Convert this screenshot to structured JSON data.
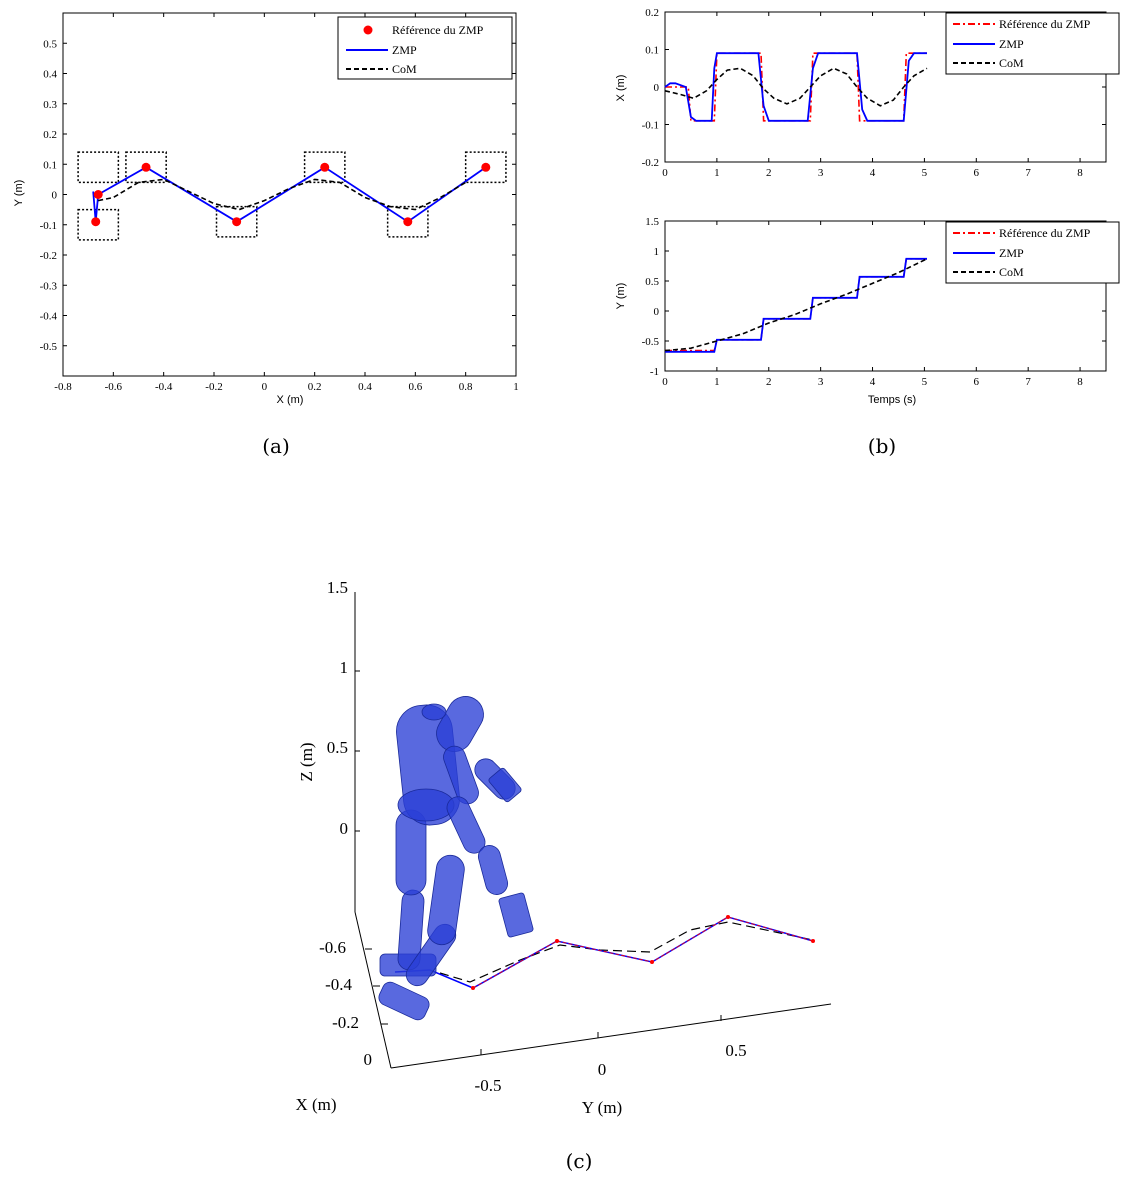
{
  "captions": {
    "a": "(a)",
    "b": "(b)",
    "c": "(c)"
  },
  "colors": {
    "reference": "#ff0000",
    "zmp": "#0000ff",
    "com": "#000000",
    "robot": "#2a3fd6"
  },
  "chart_data": [
    {
      "id": "a",
      "type": "line",
      "xlabel": "X (m)",
      "ylabel": "Y (m)",
      "xlim": [
        -0.8,
        1
      ],
      "ylim": [
        -0.6,
        0.6
      ],
      "xticks": [
        "-0.8",
        "-0.6",
        "-0.4",
        "-0.2",
        "0",
        "0.2",
        "0.4",
        "0.6",
        "0.8",
        "1"
      ],
      "yticks": [
        "0.5",
        "0.4",
        "0.3",
        "0.2",
        "0.1",
        "0",
        "-0.1",
        "-0.2",
        "-0.3",
        "-0.4",
        "-0.5"
      ],
      "legend_position": "top-right",
      "legend": [
        "Référence du ZMP",
        "ZMP",
        "CoM"
      ],
      "series": [
        {
          "name": "Référence du ZMP",
          "style": "markers",
          "x": [
            -0.66,
            -0.67,
            -0.47,
            -0.11,
            0.24,
            0.57,
            0.88
          ],
          "y": [
            0.0,
            -0.09,
            0.09,
            -0.09,
            0.09,
            -0.09,
            0.09
          ]
        },
        {
          "name": "ZMP",
          "style": "solid",
          "x": [
            -0.68,
            -0.67,
            -0.66,
            -0.47,
            -0.11,
            0.24,
            0.57,
            0.88
          ],
          "y": [
            0.01,
            -0.09,
            0.0,
            0.09,
            -0.09,
            0.09,
            -0.09,
            0.09
          ]
        },
        {
          "name": "CoM",
          "style": "dashed",
          "x": [
            -0.66,
            -0.6,
            -0.5,
            -0.4,
            -0.3,
            -0.2,
            -0.1,
            0.0,
            0.1,
            0.2,
            0.3,
            0.4,
            0.5,
            0.6,
            0.7,
            0.8
          ],
          "y": [
            -0.02,
            -0.01,
            0.04,
            0.05,
            0.01,
            -0.03,
            -0.05,
            -0.02,
            0.02,
            0.05,
            0.04,
            -0.01,
            -0.04,
            -0.05,
            -0.01,
            0.04
          ]
        }
      ],
      "footprints": [
        {
          "x": -0.66,
          "y": 0.09
        },
        {
          "x": -0.66,
          "y": -0.1
        },
        {
          "x": -0.47,
          "y": 0.09
        },
        {
          "x": -0.11,
          "y": -0.09
        },
        {
          "x": 0.24,
          "y": 0.09
        },
        {
          "x": 0.57,
          "y": -0.09
        },
        {
          "x": 0.88,
          "y": 0.09
        }
      ]
    },
    {
      "id": "b-top",
      "type": "line",
      "xlabel": "",
      "ylabel": "X (m)",
      "xlim": [
        0,
        8.5
      ],
      "ylim": [
        -0.2,
        0.2
      ],
      "xticks": [
        "0",
        "1",
        "2",
        "3",
        "4",
        "5",
        "6",
        "7",
        "8"
      ],
      "yticks": [
        "0.2",
        "0.1",
        "0",
        "-0.1",
        "-0.2"
      ],
      "legend_position": "top-right",
      "legend": [
        "Référence du ZMP",
        "ZMP",
        "CoM"
      ],
      "series": [
        {
          "name": "Référence du ZMP",
          "style": "dashdot",
          "x": [
            0,
            0.45,
            0.5,
            0.95,
            1.0,
            1.85,
            1.9,
            2.8,
            2.85,
            3.7,
            3.75,
            4.6,
            4.65,
            5.05
          ],
          "y": [
            0,
            0,
            -0.09,
            -0.09,
            0.09,
            0.09,
            -0.09,
            -0.09,
            0.09,
            0.09,
            -0.09,
            -0.09,
            0.09,
            0.09
          ]
        },
        {
          "name": "ZMP",
          "style": "solid",
          "x": [
            0,
            0.1,
            0.2,
            0.4,
            0.5,
            0.6,
            0.9,
            0.95,
            1.0,
            1.8,
            1.9,
            2.0,
            2.75,
            2.85,
            2.95,
            3.7,
            3.8,
            3.9,
            4.6,
            4.7,
            4.8,
            5.05
          ],
          "y": [
            0.0,
            0.01,
            0.01,
            0.0,
            -0.08,
            -0.09,
            -0.09,
            0.05,
            0.09,
            0.09,
            -0.05,
            -0.09,
            -0.09,
            0.05,
            0.09,
            0.09,
            -0.06,
            -0.09,
            -0.09,
            0.07,
            0.09,
            0.09
          ]
        },
        {
          "name": "CoM",
          "style": "dashed",
          "x": [
            0,
            0.3,
            0.55,
            0.8,
            1.0,
            1.2,
            1.45,
            1.7,
            1.9,
            2.1,
            2.35,
            2.6,
            2.8,
            3.0,
            3.25,
            3.5,
            3.7,
            3.9,
            4.15,
            4.4,
            4.6,
            4.8,
            5.05
          ],
          "y": [
            -0.01,
            -0.02,
            -0.03,
            -0.01,
            0.02,
            0.045,
            0.05,
            0.03,
            -0.005,
            -0.03,
            -0.045,
            -0.03,
            0.0,
            0.03,
            0.05,
            0.035,
            0.0,
            -0.03,
            -0.05,
            -0.035,
            0.0,
            0.03,
            0.05
          ]
        }
      ]
    },
    {
      "id": "b-bottom",
      "type": "line",
      "xlabel": "Temps (s)",
      "ylabel": "Y (m)",
      "xlim": [
        0,
        8.5
      ],
      "ylim": [
        -1,
        1.5
      ],
      "xticks": [
        "0",
        "1",
        "2",
        "3",
        "4",
        "5",
        "6",
        "7",
        "8"
      ],
      "yticks": [
        "1.5",
        "1",
        "0.5",
        "0",
        "-0.5",
        "-1"
      ],
      "legend_position": "top-right",
      "legend": [
        "Référence du ZMP",
        "ZMP",
        "CoM"
      ],
      "series": [
        {
          "name": "Référence du ZMP",
          "style": "dashdot",
          "x": [
            0,
            0.95,
            1.0,
            1.85,
            1.9,
            2.8,
            2.85,
            3.7,
            3.75,
            4.6,
            4.65,
            5.05
          ],
          "y": [
            -0.66,
            -0.66,
            -0.48,
            -0.48,
            -0.13,
            -0.13,
            0.22,
            0.22,
            0.57,
            0.57,
            0.87,
            0.87
          ]
        },
        {
          "name": "ZMP",
          "style": "solid",
          "x": [
            0,
            0.95,
            1.0,
            1.85,
            1.9,
            2.8,
            2.85,
            3.7,
            3.75,
            4.6,
            4.65,
            5.05
          ],
          "y": [
            -0.68,
            -0.68,
            -0.48,
            -0.48,
            -0.13,
            -0.13,
            0.22,
            0.22,
            0.57,
            0.57,
            0.87,
            0.87
          ]
        },
        {
          "name": "CoM",
          "style": "dashed",
          "x": [
            0,
            0.5,
            1.0,
            1.5,
            2.0,
            2.5,
            3.0,
            3.5,
            4.0,
            4.5,
            5.05
          ],
          "y": [
            -0.66,
            -0.62,
            -0.5,
            -0.38,
            -0.2,
            -0.06,
            0.12,
            0.28,
            0.46,
            0.64,
            0.87
          ]
        }
      ]
    }
  ],
  "plot3d": {
    "zlabel": "Z (m)",
    "xlabel": "X (m)",
    "ylabel": "Y (m)",
    "zticks": [
      "1.5",
      "1",
      "0.5",
      "0"
    ],
    "xticks": [
      "-0.6",
      "-0.4",
      "-0.2",
      "0"
    ],
    "yticks": [
      "-0.5",
      "0",
      "0.5"
    ]
  }
}
